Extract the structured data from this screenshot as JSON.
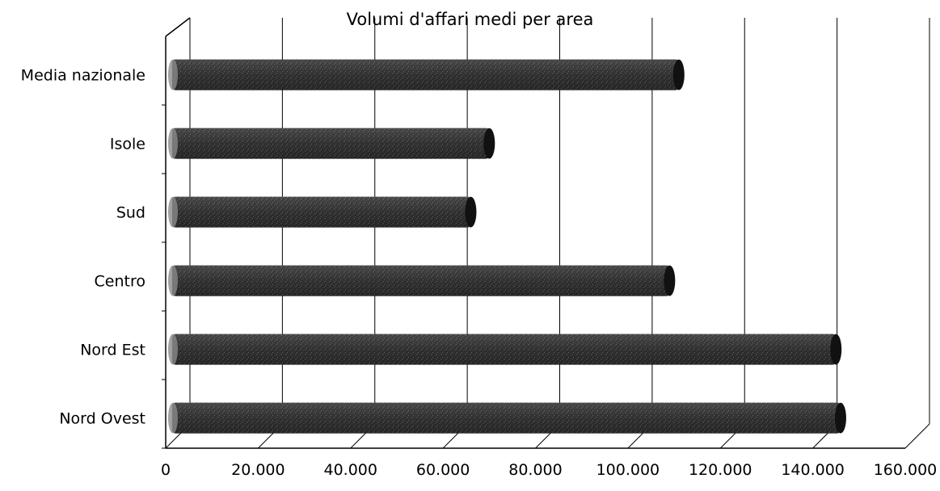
{
  "chart_data": {
    "type": "bar",
    "orientation": "horizontal",
    "title": "Volumi d'affari medi per area",
    "xlabel": "",
    "ylabel": "",
    "categories": [
      "Nord Ovest",
      "Nord Est",
      "Centro",
      "Sud",
      "Isole",
      "Media nazionale"
    ],
    "values": [
      146000,
      145000,
      109000,
      66000,
      70000,
      111000
    ],
    "xlim": [
      0,
      160000
    ],
    "ticks": [
      0,
      20000,
      40000,
      60000,
      80000,
      100000,
      120000,
      140000,
      160000
    ],
    "tick_labels": [
      "0",
      "20.000",
      "40.000",
      "60.000",
      "80.000",
      "100.000",
      "120.000",
      "140.000",
      "160.000"
    ],
    "grid": true,
    "legend": "none",
    "style": "3d",
    "colors": {
      "bar": "#2a2a2a",
      "bar_end": "#111111",
      "grid": "#000000"
    }
  }
}
